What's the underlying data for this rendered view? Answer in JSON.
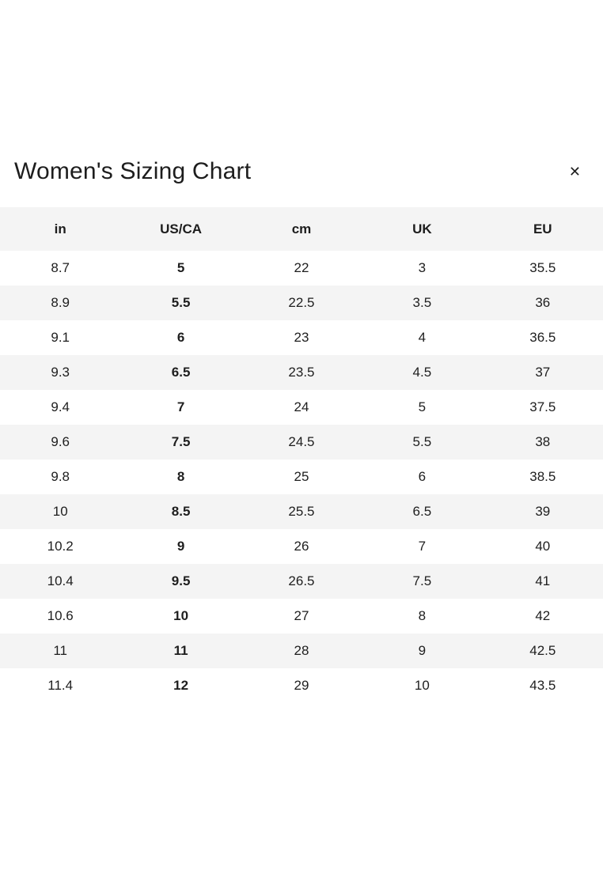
{
  "modal": {
    "title": "Women's Sizing Chart",
    "close_icon": "✕"
  },
  "colors": {
    "stripe": "#f4f4f4",
    "text": "#1d1d1d",
    "background": "#ffffff"
  },
  "table": {
    "headers": [
      "in",
      "US/CA",
      "cm",
      "UK",
      "EU"
    ],
    "bold_column_index": 1,
    "rows": [
      [
        "8.7",
        "5",
        "22",
        "3",
        "35.5"
      ],
      [
        "8.9",
        "5.5",
        "22.5",
        "3.5",
        "36"
      ],
      [
        "9.1",
        "6",
        "23",
        "4",
        "36.5"
      ],
      [
        "9.3",
        "6.5",
        "23.5",
        "4.5",
        "37"
      ],
      [
        "9.4",
        "7",
        "24",
        "5",
        "37.5"
      ],
      [
        "9.6",
        "7.5",
        "24.5",
        "5.5",
        "38"
      ],
      [
        "9.8",
        "8",
        "25",
        "6",
        "38.5"
      ],
      [
        "10",
        "8.5",
        "25.5",
        "6.5",
        "39"
      ],
      [
        "10.2",
        "9",
        "26",
        "7",
        "40"
      ],
      [
        "10.4",
        "9.5",
        "26.5",
        "7.5",
        "41"
      ],
      [
        "10.6",
        "10",
        "27",
        "8",
        "42"
      ],
      [
        "11",
        "11",
        "28",
        "9",
        "42.5"
      ],
      [
        "11.4",
        "12",
        "29",
        "10",
        "43.5"
      ]
    ]
  }
}
